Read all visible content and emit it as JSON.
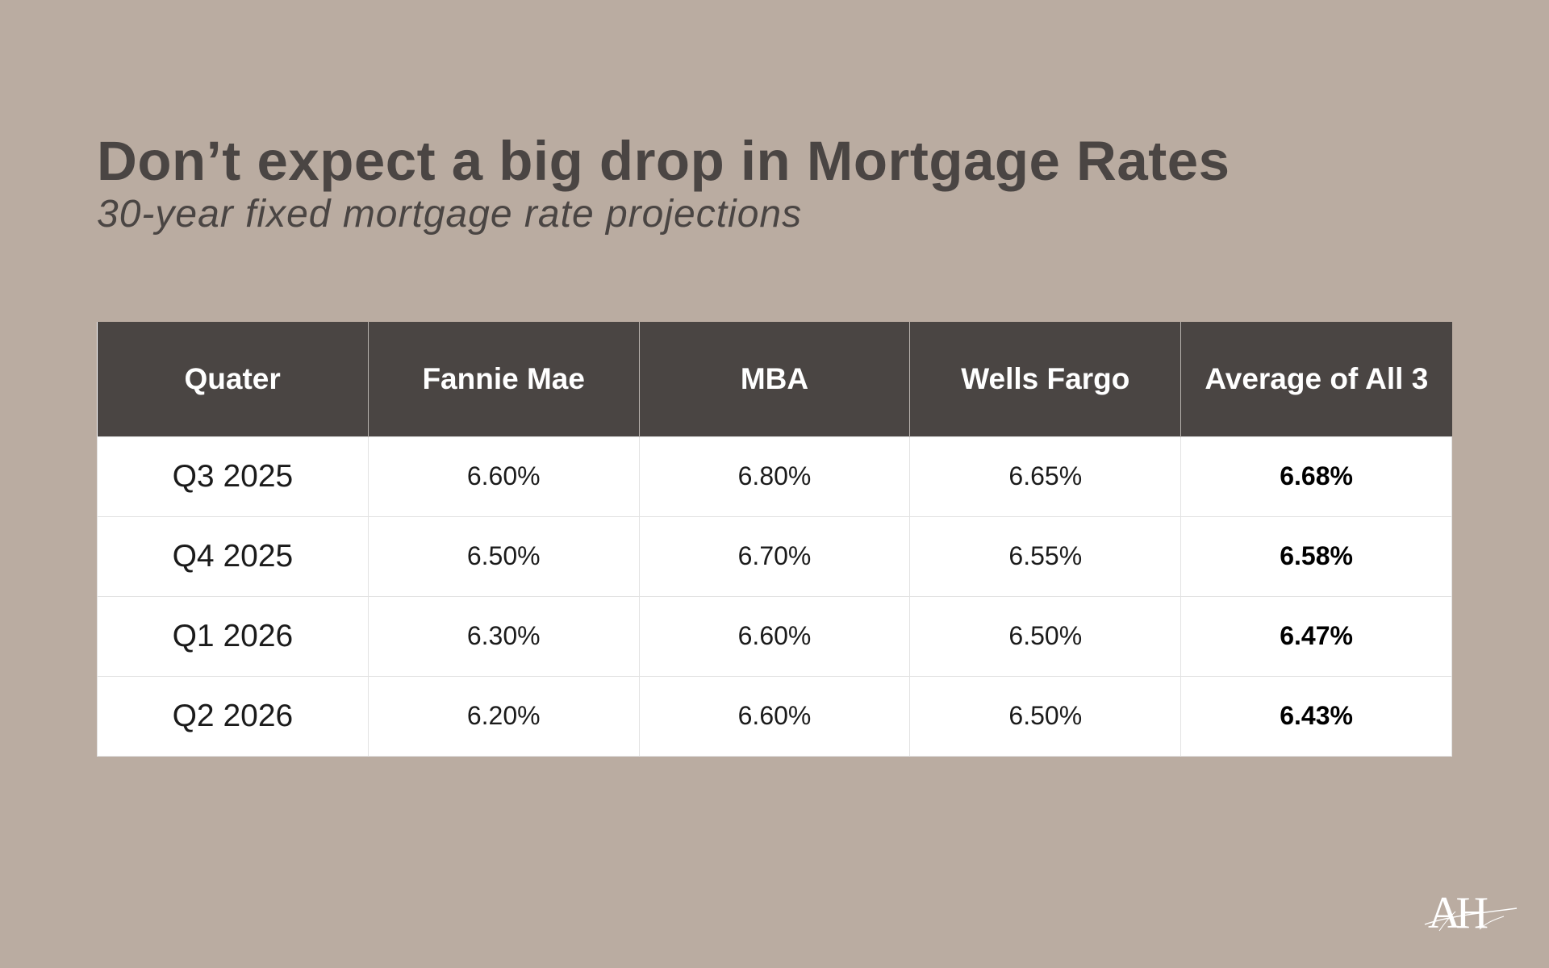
{
  "title": "Don’t expect a big drop in Mortgage Rates",
  "subtitle": "30-year fixed mortgage rate projections",
  "chart_data": {
    "type": "table",
    "columns": [
      "Quater",
      "Fannie Mae",
      "MBA",
      "Wells Fargo",
      "Average of All 3"
    ],
    "rows": [
      [
        "Q3 2025",
        "6.60%",
        "6.80%",
        "6.65%",
        "6.68%"
      ],
      [
        "Q4 2025",
        "6.50%",
        "6.70%",
        "6.55%",
        "6.58%"
      ],
      [
        "Q1 2026",
        "6.30%",
        "6.60%",
        "6.50%",
        "6.47%"
      ],
      [
        "Q2 2026",
        "6.20%",
        "6.60%",
        "6.50%",
        "6.43%"
      ]
    ]
  },
  "logo": {
    "text": "AH",
    "icon": "ah-monogram-logo"
  },
  "colors": {
    "background": "#baaca1",
    "header": "#4a4543",
    "title_text": "#4a4543",
    "cell_background": "#ffffff"
  }
}
